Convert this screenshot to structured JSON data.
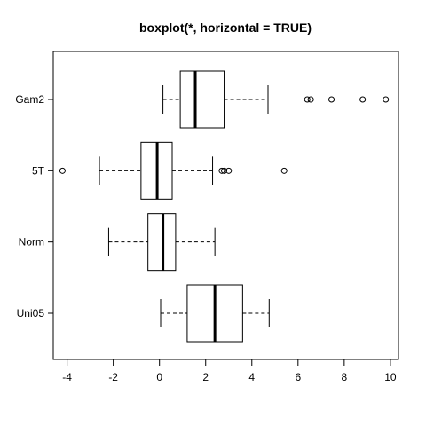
{
  "chart_data": {
    "type": "boxplot",
    "orientation": "horizontal",
    "title": "boxplot(*, horizontal = TRUE)",
    "xlabel": "",
    "ylabel": "",
    "xlim": [
      -4.6,
      10.35
    ],
    "xticks": [
      -4,
      -2,
      0,
      2,
      4,
      6,
      8,
      10
    ],
    "grid": false,
    "series": [
      {
        "name": "Uni05",
        "whisker_low": 0.05,
        "q1": 1.2,
        "median": 2.4,
        "q3": 3.6,
        "whisker_high": 4.75,
        "outliers": []
      },
      {
        "name": "Norm",
        "whisker_low": -2.2,
        "q1": -0.5,
        "median": 0.15,
        "q3": 0.7,
        "whisker_high": 2.4,
        "outliers": []
      },
      {
        "name": "5T",
        "whisker_low": -2.6,
        "q1": -0.8,
        "median": -0.1,
        "q3": 0.55,
        "whisker_high": 2.3,
        "outliers": [
          -4.2,
          2.7,
          2.8,
          3.0,
          5.4
        ]
      },
      {
        "name": "Gam2",
        "whisker_low": 0.15,
        "q1": 0.9,
        "median": 1.55,
        "q3": 2.8,
        "whisker_high": 4.7,
        "outliers": [
          6.4,
          6.55,
          7.45,
          8.8,
          9.8
        ]
      }
    ]
  }
}
